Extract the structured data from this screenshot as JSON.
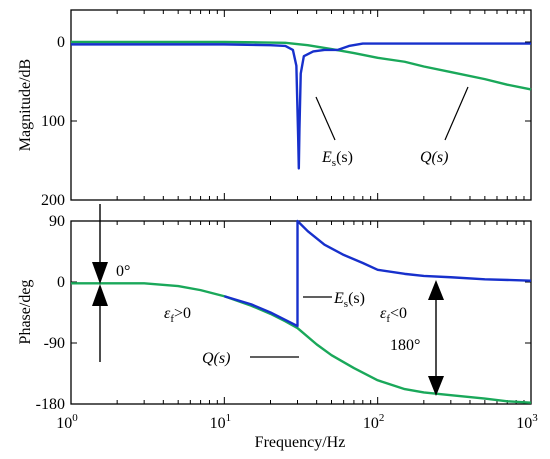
{
  "chart_data": [
    {
      "type": "line",
      "xlabel": "",
      "ylabel": "Magnitude/dB",
      "xscale": "log",
      "xlim": [
        1,
        1000
      ],
      "ylim": [
        -200,
        0
      ],
      "yticks": [
        0,
        -100,
        -200
      ],
      "yticklabels": [
        "0",
        "100",
        "200"
      ],
      "series": [
        {
          "name": "Q(s)",
          "color": "#1aa85a",
          "x": [
            1,
            5,
            10,
            17,
            25,
            35,
            50,
            70,
            100,
            150,
            200,
            300,
            500,
            700,
            1000
          ],
          "y": [
            0,
            0,
            0,
            -0.5,
            -1,
            -4,
            -9,
            -14,
            -20,
            -25,
            -31,
            -38,
            -47,
            -54,
            -60
          ]
        },
        {
          "name": "Es(s)",
          "color": "#1730cc",
          "x": [
            1,
            10,
            20,
            25,
            28,
            29.5,
            30.3,
            30.6,
            30.9,
            31.5,
            33,
            38,
            45,
            55,
            65,
            80,
            1000
          ],
          "y": [
            -3,
            -3,
            -4,
            -5,
            -10,
            -30,
            -120,
            -160,
            -110,
            -40,
            -18,
            -12,
            -10,
            -10,
            -5,
            -2,
            -2
          ]
        }
      ]
    },
    {
      "type": "line",
      "xlabel": "Frequency/Hz",
      "ylabel": "Phase/deg",
      "xscale": "log",
      "xlim": [
        1,
        1000
      ],
      "ylim": [
        -180,
        90
      ],
      "yticks": [
        90,
        0,
        -90,
        -180
      ],
      "yticklabels": [
        "90",
        "0",
        "-90",
        "-180"
      ],
      "xticks": [
        1,
        10,
        100,
        1000
      ],
      "xtick_exponents": [
        "0",
        "1",
        "2",
        "3"
      ],
      "series": [
        {
          "name": "Q(s)",
          "color": "#1aa85a",
          "x": [
            1,
            3,
            5,
            7,
            10,
            15,
            20,
            25,
            30,
            40,
            50,
            70,
            100,
            150,
            200,
            300,
            500,
            700,
            1000
          ],
          "y": [
            -2,
            -2,
            -6,
            -12,
            -21,
            -35,
            -47,
            -58,
            -68,
            -92,
            -108,
            -127,
            -145,
            -158,
            -163,
            -167,
            -172,
            -176,
            -178
          ]
        },
        {
          "name": "Es(s)",
          "color": "#1730cc",
          "x": [
            10,
            15,
            20,
            25,
            30,
            30.01,
            35,
            45,
            60,
            80,
            100,
            150,
            200,
            300,
            500,
            1000
          ],
          "y": [
            -21,
            -33,
            -45,
            -56,
            -65,
            90,
            75,
            55,
            40,
            28,
            18,
            12,
            9,
            7,
            4,
            2
          ]
        }
      ]
    }
  ],
  "annotations": {
    "es_mag_label": "E",
    "es_mag_sub": "s",
    "es_mag_tail": "(s)",
    "q_mag_label": "Q(s)",
    "zero_deg": "0°",
    "ef_pos_label": "ε",
    "ef_pos_sub": "f",
    "ef_pos_tail": ">0",
    "ef_neg_label": "ε",
    "ef_neg_sub": "f",
    "ef_neg_tail": "<0",
    "es_phase_label": "E",
    "es_phase_sub": "s",
    "es_phase_tail": "(s)",
    "q_phase_label": "Q(s)",
    "deg_180": "180°",
    "x_base": "10"
  },
  "colors": {
    "q_series": "#1aa85a",
    "es_series": "#1730cc",
    "axes": "#000000"
  }
}
